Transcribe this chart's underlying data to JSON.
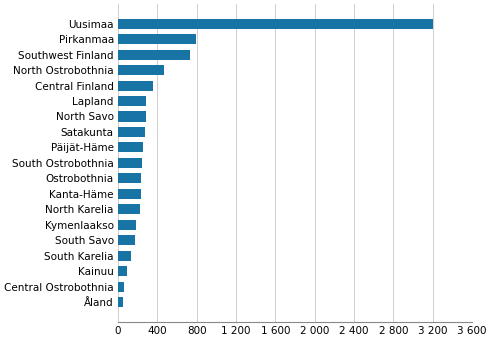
{
  "regions": [
    "Uusimaa",
    "Pirkanmaa",
    "Southwest Finland",
    "North Ostrobothnia",
    "Central Finland",
    "Lapland",
    "North Savo",
    "Satakunta",
    "Päijät-Häme",
    "South Ostrobothnia",
    "Ostrobothnia",
    "Kanta-Häme",
    "North Karelia",
    "Kymenlaakso",
    "South Savo",
    "South Karelia",
    "Kainuu",
    "Central Ostrobothnia",
    "Åland"
  ],
  "values": [
    3200,
    790,
    730,
    470,
    360,
    290,
    280,
    275,
    250,
    245,
    235,
    230,
    220,
    185,
    175,
    130,
    95,
    60,
    50
  ],
  "bar_color": "#1874a4",
  "background_color": "#ffffff",
  "grid_color": "#c8c8c8",
  "xlim": [
    0,
    3600
  ],
  "xticks": [
    0,
    400,
    800,
    1200,
    1600,
    2000,
    2400,
    2800,
    3200,
    3600
  ],
  "tick_fontsize": 7.5,
  "label_fontsize": 7.5
}
